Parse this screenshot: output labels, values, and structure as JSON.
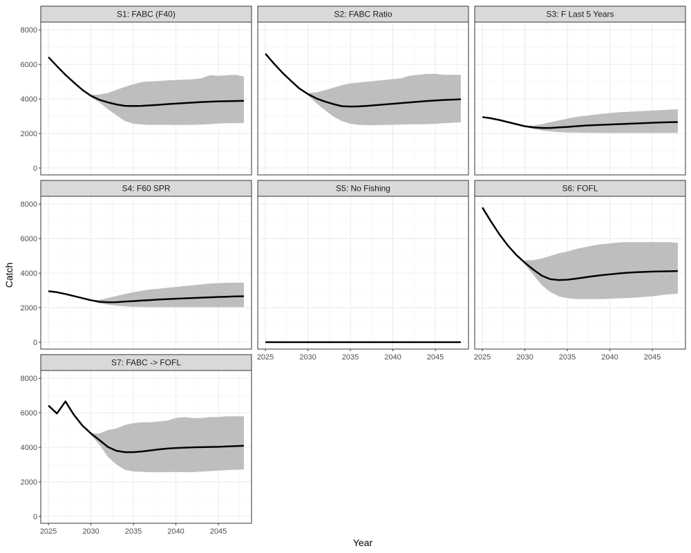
{
  "chart_data": {
    "type": "area",
    "xlabel": "Year",
    "ylabel": "Catch",
    "xlim": [
      2024.1,
      2048.9
    ],
    "ylim": [
      -400,
      8450
    ],
    "x_ticks": [
      "2025",
      "2030",
      "2035",
      "2040",
      "2045"
    ],
    "y_ticks": [
      "0",
      "2000",
      "4000",
      "6000",
      "8000"
    ],
    "grid": true,
    "band_color": "#bebebe",
    "line_color": "#000000",
    "x": [
      2025,
      2026,
      2027,
      2028,
      2029,
      2030,
      2031,
      2032,
      2033,
      2034,
      2035,
      2036,
      2037,
      2038,
      2039,
      2040,
      2041,
      2042,
      2043,
      2044,
      2045,
      2046,
      2047,
      2048
    ],
    "panels": [
      {
        "title": "S1: FABC (F40)",
        "median": [
          6420,
          5900,
          5400,
          4950,
          4520,
          4180,
          3950,
          3800,
          3680,
          3600,
          3590,
          3600,
          3630,
          3660,
          3700,
          3730,
          3760,
          3790,
          3820,
          3840,
          3860,
          3870,
          3880,
          3890
        ],
        "upper": [
          null,
          null,
          null,
          null,
          null,
          4250,
          4250,
          4350,
          4520,
          4700,
          4850,
          4980,
          5020,
          5040,
          5080,
          5100,
          5120,
          5140,
          5200,
          5380,
          5340,
          5380,
          5400,
          5300
        ],
        "lower": [
          null,
          null,
          null,
          null,
          null,
          4100,
          3800,
          3400,
          3050,
          2720,
          2560,
          2520,
          2500,
          2500,
          2500,
          2490,
          2490,
          2500,
          2520,
          2540,
          2570,
          2590,
          2600,
          2600
        ]
      },
      {
        "title": "S2: FABC Ratio",
        "median": [
          6620,
          6050,
          5520,
          5050,
          4600,
          4280,
          4030,
          3850,
          3700,
          3580,
          3560,
          3570,
          3600,
          3640,
          3680,
          3720,
          3760,
          3800,
          3840,
          3880,
          3910,
          3940,
          3960,
          3980
        ],
        "upper": [
          null,
          null,
          null,
          null,
          null,
          4350,
          4380,
          4500,
          4650,
          4800,
          4900,
          4950,
          5000,
          5050,
          5100,
          5150,
          5200,
          5350,
          5400,
          5450,
          5450,
          5400,
          5400,
          5400
        ],
        "lower": [
          null,
          null,
          null,
          null,
          null,
          4200,
          3750,
          3350,
          2980,
          2720,
          2560,
          2500,
          2480,
          2480,
          2490,
          2500,
          2520,
          2530,
          2530,
          2540,
          2560,
          2590,
          2620,
          2650
        ]
      },
      {
        "title": "S3: F Last 5 Years",
        "median": [
          2950,
          2880,
          2780,
          2660,
          2540,
          2420,
          2350,
          2320,
          2320,
          2350,
          2380,
          2420,
          2450,
          2480,
          2500,
          2520,
          2540,
          2560,
          2580,
          2600,
          2620,
          2640,
          2650,
          2660
        ],
        "upper": [
          null,
          null,
          null,
          null,
          null,
          2440,
          2450,
          2540,
          2650,
          2750,
          2860,
          2950,
          3020,
          3080,
          3130,
          3180,
          3230,
          3250,
          3280,
          3300,
          3330,
          3350,
          3380,
          3400
        ],
        "lower": [
          null,
          null,
          null,
          null,
          null,
          2400,
          2260,
          2180,
          2120,
          2080,
          2060,
          2050,
          2040,
          2040,
          2030,
          2030,
          2030,
          2030,
          2030,
          2030,
          2030,
          2030,
          2030,
          2030
        ]
      },
      {
        "title": "S4: F60 SPR",
        "median": [
          2950,
          2890,
          2790,
          2670,
          2550,
          2430,
          2340,
          2310,
          2320,
          2350,
          2380,
          2410,
          2440,
          2470,
          2490,
          2520,
          2540,
          2560,
          2580,
          2600,
          2620,
          2630,
          2650,
          2660
        ],
        "upper": [
          null,
          null,
          null,
          null,
          null,
          2440,
          2450,
          2560,
          2680,
          2790,
          2900,
          2980,
          3050,
          3100,
          3150,
          3200,
          3250,
          3300,
          3350,
          3400,
          3420,
          3440,
          3450,
          3450
        ],
        "lower": [
          null,
          null,
          null,
          null,
          null,
          2420,
          2250,
          2170,
          2110,
          2070,
          2050,
          2040,
          2030,
          2030,
          2030,
          2030,
          2030,
          2030,
          2030,
          2030,
          2030,
          2030,
          2030,
          2030
        ]
      },
      {
        "title": "S5: No Fishing",
        "median": [
          0,
          0,
          0,
          0,
          0,
          0,
          0,
          0,
          0,
          0,
          0,
          0,
          0,
          0,
          0,
          0,
          0,
          0,
          0,
          0,
          0,
          0,
          0,
          0
        ],
        "upper": [],
        "lower": []
      },
      {
        "title": "S6: FOFL",
        "median": [
          7800,
          7000,
          6250,
          5600,
          5050,
          4600,
          4200,
          3850,
          3650,
          3600,
          3620,
          3680,
          3750,
          3820,
          3880,
          3930,
          3980,
          4020,
          4050,
          4070,
          4090,
          4100,
          4110,
          4120
        ],
        "upper": [
          null,
          null,
          null,
          null,
          null,
          4750,
          4750,
          4850,
          5000,
          5150,
          5250,
          5400,
          5500,
          5600,
          5680,
          5720,
          5780,
          5800,
          5800,
          5800,
          5800,
          5800,
          5800,
          5750
        ],
        "lower": [
          null,
          null,
          null,
          null,
          null,
          4500,
          3900,
          3300,
          2900,
          2650,
          2550,
          2500,
          2500,
          2500,
          2500,
          2520,
          2540,
          2560,
          2580,
          2620,
          2660,
          2720,
          2780,
          2800
        ]
      },
      {
        "title": "S7: FABC -> FOFL",
        "median": [
          6420,
          5960,
          6660,
          5880,
          5260,
          4800,
          4420,
          4020,
          3800,
          3720,
          3720,
          3760,
          3820,
          3880,
          3930,
          3960,
          3980,
          4000,
          4010,
          4020,
          4030,
          4050,
          4070,
          4090
        ],
        "upper": [
          null,
          null,
          null,
          null,
          null,
          4800,
          4800,
          5000,
          5100,
          5300,
          5400,
          5450,
          5450,
          5500,
          5550,
          5700,
          5750,
          5700,
          5700,
          5750,
          5750,
          5800,
          5800,
          5800
        ],
        "lower": [
          null,
          null,
          null,
          null,
          null,
          4700,
          4150,
          3450,
          3000,
          2700,
          2600,
          2580,
          2560,
          2560,
          2560,
          2580,
          2560,
          2560,
          2600,
          2620,
          2650,
          2680,
          2700,
          2720
        ]
      }
    ]
  }
}
